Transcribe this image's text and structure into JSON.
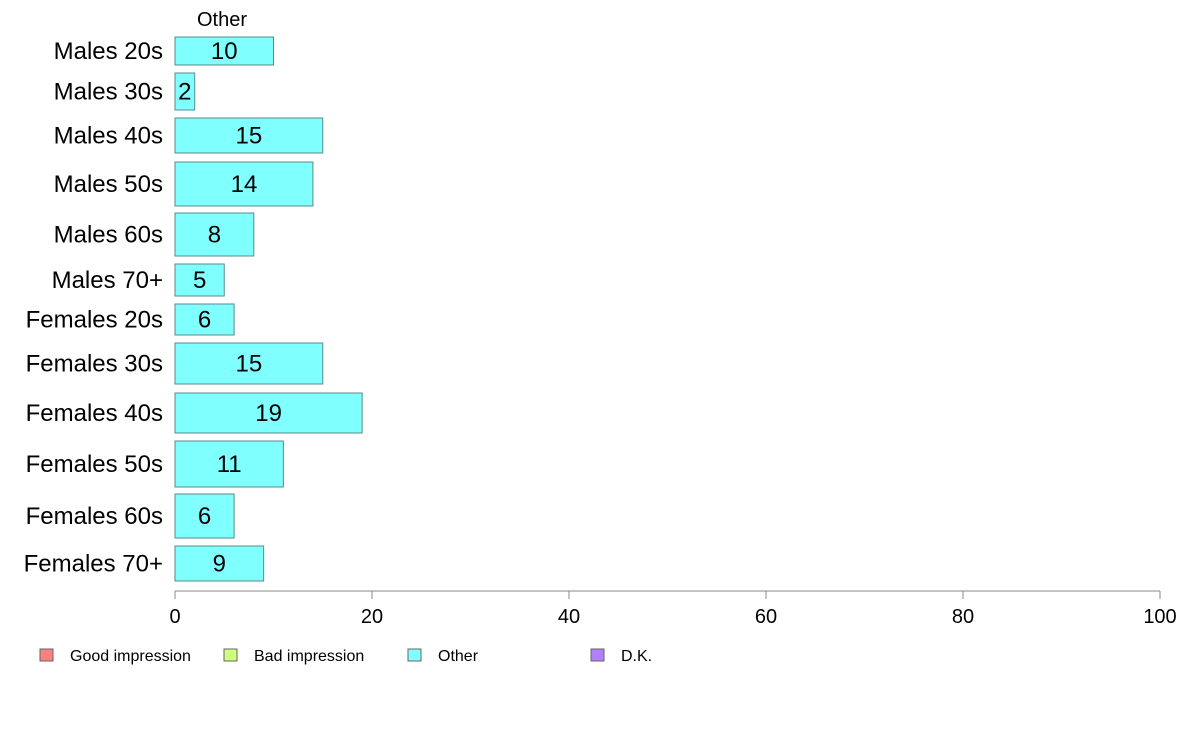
{
  "chart_data": {
    "type": "bar",
    "orientation": "horizontal",
    "series_title": "Other",
    "categories": [
      "Males 20s",
      "Males 30s",
      "Males 40s",
      "Males 50s",
      "Males 60s",
      "Males 70+",
      "Females 20s",
      "Females 30s",
      "Females 40s",
      "Females 50s",
      "Females 60s",
      "Females 70+"
    ],
    "series": [
      {
        "name": "Other",
        "color": "#80FFFF",
        "values": [
          10,
          2,
          15,
          14,
          8,
          5,
          6,
          15,
          19,
          11,
          6,
          9
        ]
      }
    ],
    "xlim": [
      0,
      100
    ],
    "xticks": [
      0,
      20,
      40,
      60,
      80,
      100
    ],
    "grid": false,
    "legend": {
      "placement": "bottom",
      "items": [
        {
          "label": "Good impression",
          "color": "#FF8080"
        },
        {
          "label": "Bad impression",
          "color": "#CCFF80"
        },
        {
          "label": "Other",
          "color": "#80FFFF"
        },
        {
          "label": "D.K.",
          "color": "#B080FF"
        }
      ]
    }
  }
}
